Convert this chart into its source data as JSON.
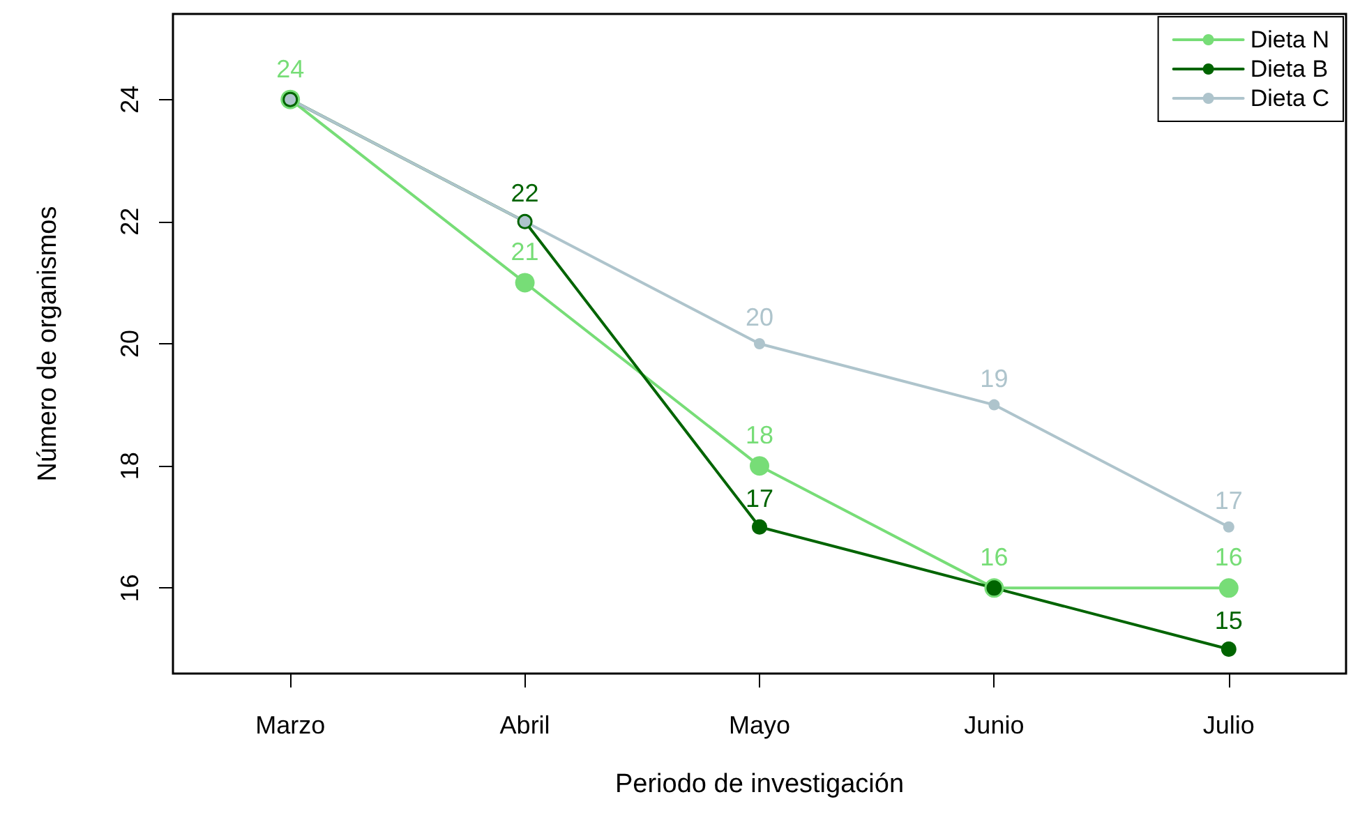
{
  "chart_data": {
    "type": "line",
    "xlabel": "Periodo de investigación",
    "ylabel": "Número de organismos",
    "categories": [
      "Marzo",
      "Abril",
      "Mayo",
      "Junio",
      "Julio"
    ],
    "series": [
      {
        "name": "Dieta N",
        "color": "#77dd77",
        "values": [
          24,
          21,
          18,
          16,
          16
        ],
        "value_labels": [
          "24",
          "21",
          "18",
          "16",
          "16"
        ]
      },
      {
        "name": "Dieta B",
        "color": "#006400",
        "values": [
          24,
          22,
          17,
          16,
          15
        ],
        "value_labels": [
          null,
          "22",
          "17",
          null,
          "15"
        ]
      },
      {
        "name": "Dieta C",
        "color": "#aec4cc",
        "values": [
          24,
          22,
          20,
          19,
          17
        ],
        "value_labels": [
          null,
          null,
          "20",
          "19",
          "17"
        ]
      }
    ],
    "ylim": [
      14.6,
      25.4
    ],
    "yticks": [
      16,
      18,
      20,
      22,
      24
    ],
    "grid": false,
    "legend": "top right",
    "marker": "circle",
    "line_style": "solid"
  }
}
